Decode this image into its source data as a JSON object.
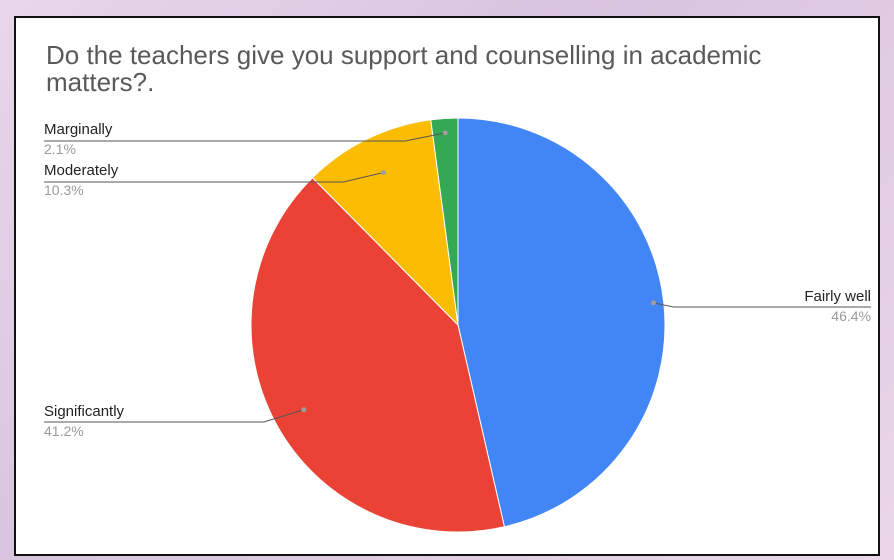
{
  "chart_data": {
    "type": "pie",
    "title": "Do the teachers give you support and counselling in academic matters?.",
    "slices": [
      {
        "label": "Fairly well",
        "value": 46.4,
        "value_label": "46.4%",
        "color": "#4285f4"
      },
      {
        "label": "Significantly",
        "value": 41.2,
        "value_label": "41.2%",
        "color": "#ea4335"
      },
      {
        "label": "Moderately",
        "value": 10.3,
        "value_label": "10.3%",
        "color": "#fbbc04"
      },
      {
        "label": "Marginally",
        "value": 2.1,
        "value_label": "2.1%",
        "color": "#34a853"
      }
    ],
    "start_angle": "12 o'clock",
    "direction": "clockwise",
    "legend": "labeled slices (leader lines)"
  }
}
